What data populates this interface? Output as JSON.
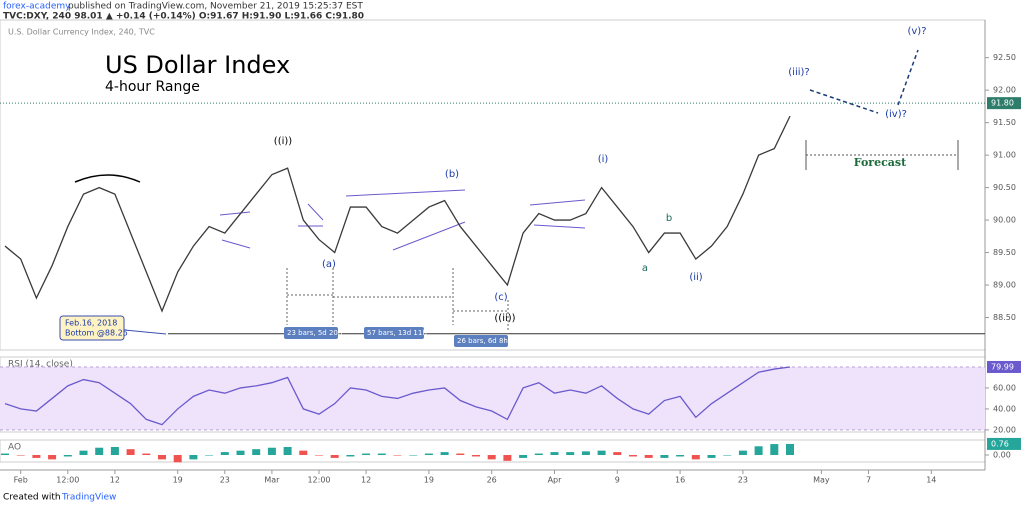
{
  "header": {
    "publisher": "forex-academy",
    "published": "published on TradingView.com, November 21, 2019 15:25:37 EST",
    "symbol_line": "TVC:DXY, 240  98.01 ▲ +0.14 (+0.14%) O:91.67 H:91.90 L:91.66 C:91.80"
  },
  "footer": {
    "created": "Created with",
    "brand": "TradingView"
  },
  "chart_data": [
    {
      "type": "line",
      "title": "US Dollar Index",
      "subtitle": "4-hour Range",
      "source": "U.S. Dollar Currency Index, 240, TVC",
      "color": "#3a3a3a",
      "categories": [
        null,
        "Feb",
        null,
        null,
        "12:00",
        null,
        null,
        "12",
        null,
        null,
        null,
        "19",
        null,
        null,
        "23",
        null,
        null,
        "Mar",
        null,
        null,
        "12:00",
        null,
        null,
        "12",
        null,
        null,
        null,
        "19",
        null,
        null,
        null,
        "26",
        null,
        null,
        null,
        "Apr",
        null,
        null,
        null,
        "9",
        null,
        null,
        null,
        "16",
        null,
        null,
        null,
        "23",
        null,
        null,
        null,
        null,
        "May",
        null,
        null,
        "7",
        null,
        null,
        null,
        "14",
        null,
        null,
        null
      ],
      "values": [
        89.6,
        89.4,
        88.8,
        89.3,
        89.9,
        90.4,
        90.5,
        90.4,
        89.8,
        89.2,
        88.6,
        89.2,
        89.6,
        89.9,
        89.8,
        90.1,
        90.4,
        90.7,
        90.8,
        90.0,
        89.7,
        89.5,
        90.2,
        90.2,
        89.9,
        89.8,
        90.0,
        90.2,
        90.3,
        89.9,
        89.6,
        89.3,
        89.0,
        89.8,
        90.1,
        90.0,
        90.0,
        90.1,
        90.5,
        90.2,
        89.9,
        89.5,
        89.8,
        89.8,
        89.4,
        89.6,
        89.9,
        90.4,
        91.0,
        91.1,
        91.6,
        null,
        null,
        null,
        null,
        null,
        null,
        null,
        null,
        null,
        null,
        null,
        null
      ],
      "ylim": [
        88.0,
        93.08
      ],
      "yticks": [
        {
          "value": 88.5,
          "label": "88.50"
        },
        {
          "value": 89,
          "label": "89.00"
        },
        {
          "value": 89.5,
          "label": "89.50"
        },
        {
          "value": 90,
          "label": "90.00"
        },
        {
          "value": 90.5,
          "label": "90.50"
        },
        {
          "value": 91,
          "label": "91.00"
        },
        {
          "value": 91.5,
          "label": "91.50"
        },
        {
          "value": 92,
          "label": "92.00"
        },
        {
          "value": 92.5,
          "label": "92.50"
        }
      ],
      "last_price": 91.8,
      "last_price_label": "91.80",
      "support_level": 88.25,
      "annotations": [
        "((i))",
        "(a)",
        "(b)",
        "(c)",
        "((ii))",
        "(i)",
        "a",
        "b",
        "(ii)",
        "(iii)?",
        "(iv)?",
        "(v)?",
        "Forecast"
      ],
      "callout": [
        "Feb.16, 2018",
        "Bottom @88.25"
      ],
      "ranges": [
        "23 bars, 5d 20h",
        "57 bars, 13d 11h",
        "26 bars, 6d 8h"
      ]
    },
    {
      "type": "line",
      "title": "RSI (14, close)",
      "color": "#6a5acd",
      "values": [
        45,
        40,
        38,
        50,
        62,
        68,
        65,
        55,
        45,
        30,
        25,
        40,
        52,
        58,
        55,
        60,
        62,
        65,
        70,
        40,
        35,
        45,
        60,
        58,
        52,
        50,
        55,
        58,
        60,
        48,
        42,
        38,
        30,
        60,
        65,
        55,
        58,
        55,
        62,
        50,
        40,
        35,
        48,
        52,
        32,
        45,
        55,
        65,
        75,
        78,
        80
      ],
      "ylim": [
        18,
        89.5
      ],
      "band": [
        20,
        80
      ],
      "yticks": [
        {
          "value": 20,
          "label": "20.00"
        },
        {
          "value": 40,
          "label": "40.00"
        },
        {
          "value": 60,
          "label": "60.00"
        }
      ],
      "last_value": 79.99
    },
    {
      "type": "bar",
      "title": "AO",
      "colors": {
        "up": "#26a69a",
        "down": "#ef5350"
      },
      "values": [
        0.1,
        0.0,
        -0.2,
        -0.3,
        -0.1,
        0.3,
        0.5,
        0.55,
        0.4,
        0.1,
        -0.3,
        -0.5,
        -0.3,
        0.0,
        0.2,
        0.3,
        0.4,
        0.5,
        0.55,
        0.3,
        0.0,
        -0.2,
        -0.1,
        0.1,
        0.1,
        0.0,
        0.0,
        0.1,
        0.2,
        0.1,
        -0.1,
        -0.3,
        -0.4,
        -0.2,
        0.1,
        0.2,
        0.2,
        0.25,
        0.3,
        0.2,
        -0.1,
        -0.2,
        -0.2,
        -0.1,
        -0.3,
        -0.2,
        0.0,
        0.3,
        0.6,
        0.75,
        0.76
      ],
      "ylim": [
        -0.48,
        1.03
      ],
      "yticks": [
        {
          "value": 0,
          "label": "0.00"
        }
      ],
      "last_value": 0.76
    }
  ]
}
